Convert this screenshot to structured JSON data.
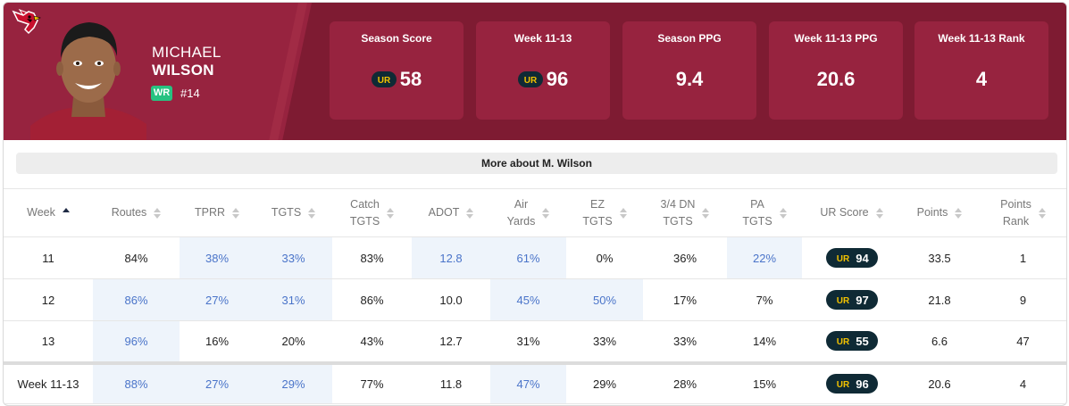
{
  "player": {
    "first_name": "MICHAEL",
    "last_name": "WILSON",
    "position": "WR",
    "number": "#14"
  },
  "colors": {
    "team_primary": "#97233f",
    "team_dark": "#7e1b32",
    "position_badge": "#27c281",
    "highlight_bg": "#eef4fb",
    "highlight_text": "#4a74c9",
    "ur_pill": "#0f2a35",
    "ur_logo_yellow": "#f2c200"
  },
  "stat_boxes": [
    {
      "label": "Season Score",
      "value": "58",
      "has_ur_logo": true
    },
    {
      "label": "Week 11-13",
      "value": "96",
      "has_ur_logo": true
    },
    {
      "label": "Season PPG",
      "value": "9.4",
      "has_ur_logo": false
    },
    {
      "label": "Week 11-13 PPG",
      "value": "20.6",
      "has_ur_logo": false
    },
    {
      "label": "Week 11-13 Rank",
      "value": "4",
      "has_ur_logo": false
    }
  ],
  "more_about": "More about M. Wilson",
  "columns": [
    {
      "line1": "Week",
      "line2": ""
    },
    {
      "line1": "Routes",
      "line2": ""
    },
    {
      "line1": "TPRR",
      "line2": ""
    },
    {
      "line1": "TGTS",
      "line2": ""
    },
    {
      "line1": "Catch",
      "line2": "TGTS"
    },
    {
      "line1": "ADOT",
      "line2": ""
    },
    {
      "line1": "Air",
      "line2": "Yards"
    },
    {
      "line1": "EZ",
      "line2": "TGTS"
    },
    {
      "line1": "3/4 DN",
      "line2": "TGTS"
    },
    {
      "line1": "PA",
      "line2": "TGTS"
    },
    {
      "line1": "UR Score",
      "line2": ""
    },
    {
      "line1": "Points",
      "line2": ""
    },
    {
      "line1": "Points",
      "line2": "Rank"
    }
  ],
  "rows": [
    {
      "week": "11",
      "routes": "84%",
      "tprr": "38%",
      "tgts": "33%",
      "catch_tgts": "83%",
      "adot": "12.8",
      "air_yards": "61%",
      "ez_tgts": "0%",
      "dn_tgts": "36%",
      "pa_tgts": "22%",
      "ur_score": "94",
      "points": "33.5",
      "points_rank": "1",
      "highlight": [
        "tprr",
        "tgts",
        "adot",
        "air_yards",
        "pa_tgts"
      ]
    },
    {
      "week": "12",
      "routes": "86%",
      "tprr": "27%",
      "tgts": "31%",
      "catch_tgts": "86%",
      "adot": "10.0",
      "air_yards": "45%",
      "ez_tgts": "50%",
      "dn_tgts": "17%",
      "pa_tgts": "7%",
      "ur_score": "97",
      "points": "21.8",
      "points_rank": "9",
      "highlight": [
        "routes",
        "tprr",
        "tgts",
        "air_yards",
        "ez_tgts"
      ]
    },
    {
      "week": "13",
      "routes": "96%",
      "tprr": "16%",
      "tgts": "20%",
      "catch_tgts": "43%",
      "adot": "12.7",
      "air_yards": "31%",
      "ez_tgts": "33%",
      "dn_tgts": "33%",
      "pa_tgts": "14%",
      "ur_score": "55",
      "points": "6.6",
      "points_rank": "47",
      "highlight": [
        "routes"
      ]
    }
  ],
  "summary": {
    "week": "Week 11-13",
    "routes": "88%",
    "tprr": "27%",
    "tgts": "29%",
    "catch_tgts": "77%",
    "adot": "11.8",
    "air_yards": "47%",
    "ez_tgts": "29%",
    "dn_tgts": "28%",
    "pa_tgts": "15%",
    "ur_score": "96",
    "points": "20.6",
    "points_rank": "4",
    "highlight": [
      "routes",
      "tprr",
      "tgts",
      "air_yards"
    ]
  },
  "sort": {
    "column": "Week",
    "direction": "ascending"
  }
}
